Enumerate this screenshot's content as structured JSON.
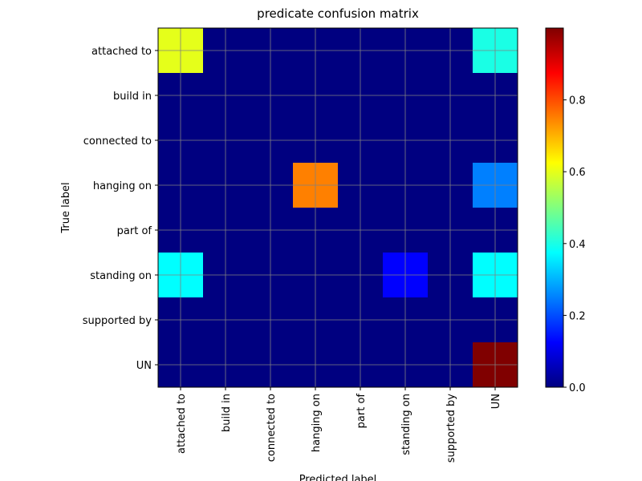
{
  "chart_data": {
    "type": "heatmap",
    "title": "predicate confusion matrix",
    "x_label": "Predicted label",
    "y_label": "True label",
    "x_categories": [
      "attached to",
      "build in",
      "connected to",
      "hanging on",
      "part of",
      "standing on",
      "supported by",
      "UN"
    ],
    "y_categories": [
      "attached to",
      "build in",
      "connected to",
      "hanging on",
      "part of",
      "standing on",
      "supported by",
      "UN"
    ],
    "values": [
      [
        0.6,
        0,
        0,
        0,
        0,
        0,
        0,
        0.4
      ],
      [
        0,
        0,
        0,
        0,
        0,
        0,
        0,
        0
      ],
      [
        0,
        0,
        0,
        0,
        0,
        0,
        0,
        0
      ],
      [
        0,
        0,
        0,
        0.75,
        0,
        0,
        0,
        0.25
      ],
      [
        0,
        0,
        0,
        0,
        0,
        0,
        0,
        0
      ],
      [
        0.375,
        0,
        0,
        0,
        0,
        0.125,
        0,
        0.375
      ],
      [
        0,
        0,
        0,
        0,
        0,
        0,
        0,
        0
      ],
      [
        0,
        0,
        0,
        0,
        0,
        0,
        0,
        1
      ]
    ],
    "colormap": "jet",
    "clim": [
      0,
      1
    ],
    "colorbar_ticks": [
      {
        "value": 0,
        "label": "0.0"
      },
      {
        "value": 0.2,
        "label": "0.2"
      },
      {
        "value": 0.4,
        "label": "0.4"
      },
      {
        "value": 0.6,
        "label": "0.6"
      },
      {
        "value": 0.8,
        "label": "0.8"
      }
    ],
    "grid": true
  }
}
